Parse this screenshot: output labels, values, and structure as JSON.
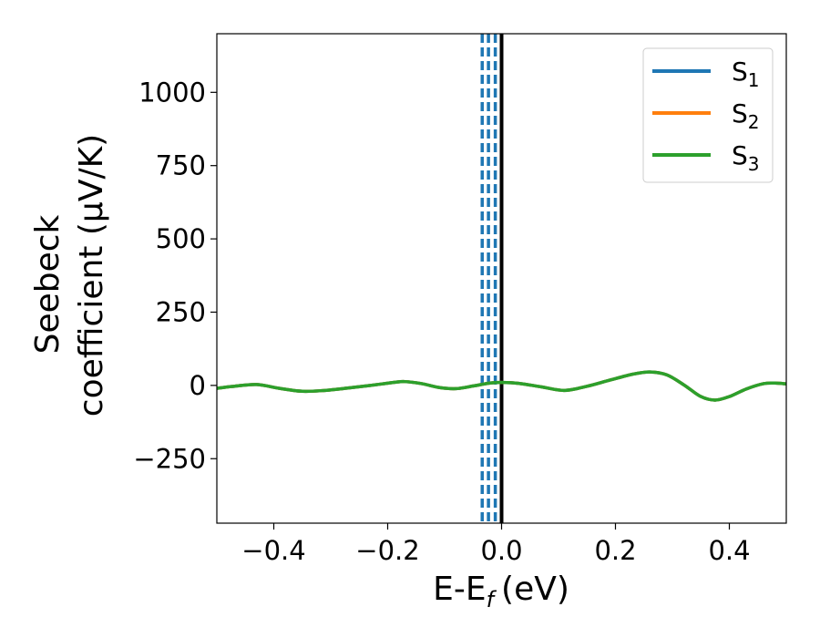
{
  "chart_data": {
    "type": "line",
    "xlabel": "E-E",
    "xlabel_subscript": "f",
    "xlabel_unit": "(eV)",
    "ylabel_line1": "Seebeck",
    "ylabel_line2": "coefficient  (μV/K)",
    "xlim": [
      -0.5,
      0.5
    ],
    "ylim": [
      -470,
      1200
    ],
    "xticks": [
      -0.4,
      -0.2,
      0.0,
      0.2,
      0.4
    ],
    "xtick_labels": [
      "−0.4",
      "−0.2",
      "0.0",
      "0.2",
      "0.4"
    ],
    "yticks": [
      -250,
      0,
      250,
      500,
      750,
      1000
    ],
    "ytick_labels": [
      "−250",
      "0",
      "250",
      "500",
      "750",
      "1000"
    ],
    "grid": false,
    "legend_position": "top-right",
    "series": [
      {
        "name": "S",
        "subscript": "1",
        "color": "#1f77b4",
        "x": [
          -0.5,
          -0.47,
          -0.43,
          -0.39,
          -0.35,
          -0.31,
          -0.27,
          -0.23,
          -0.19,
          -0.17,
          -0.14,
          -0.11,
          -0.08,
          -0.05,
          -0.02,
          0.0,
          0.03,
          0.07,
          0.11,
          0.15,
          0.19,
          0.23,
          0.26,
          0.29,
          0.32,
          0.35,
          0.375,
          0.4,
          0.43,
          0.46,
          0.48,
          0.5
        ],
        "y": [
          -10,
          -3,
          3,
          -10,
          -20,
          -17,
          -9,
          0,
          10,
          13,
          6,
          -7,
          -11,
          -2,
          8,
          10,
          7,
          -5,
          -17,
          -3,
          18,
          38,
          46,
          36,
          2,
          -38,
          -50,
          -38,
          -12,
          6,
          8,
          5
        ]
      },
      {
        "name": "S",
        "subscript": "2",
        "color": "#ff7f0e",
        "x": [
          -0.5,
          -0.47,
          -0.43,
          -0.39,
          -0.35,
          -0.31,
          -0.27,
          -0.23,
          -0.19,
          -0.17,
          -0.14,
          -0.11,
          -0.08,
          -0.05,
          -0.02,
          0.0,
          0.03,
          0.07,
          0.11,
          0.15,
          0.19,
          0.23,
          0.26,
          0.29,
          0.32,
          0.35,
          0.375,
          0.4,
          0.43,
          0.46,
          0.48,
          0.5
        ],
        "y": [
          -10,
          -3,
          3,
          -10,
          -20,
          -17,
          -9,
          0,
          10,
          13,
          6,
          -7,
          -11,
          -2,
          8,
          10,
          7,
          -5,
          -17,
          -3,
          18,
          38,
          46,
          36,
          2,
          -38,
          -50,
          -38,
          -12,
          6,
          8,
          5
        ]
      },
      {
        "name": "S",
        "subscript": "3",
        "color": "#2ca02c",
        "x": [
          -0.5,
          -0.47,
          -0.43,
          -0.39,
          -0.35,
          -0.31,
          -0.27,
          -0.23,
          -0.19,
          -0.17,
          -0.14,
          -0.11,
          -0.08,
          -0.05,
          -0.02,
          0.0,
          0.03,
          0.07,
          0.11,
          0.15,
          0.19,
          0.23,
          0.26,
          0.29,
          0.32,
          0.35,
          0.375,
          0.4,
          0.43,
          0.46,
          0.48,
          0.5
        ],
        "y": [
          -10,
          -3,
          3,
          -10,
          -20,
          -17,
          -9,
          0,
          10,
          13,
          6,
          -7,
          -11,
          -2,
          8,
          10,
          7,
          -5,
          -17,
          -3,
          18,
          38,
          46,
          36,
          2,
          -38,
          -50,
          -38,
          -12,
          6,
          8,
          5
        ]
      }
    ],
    "vertical_lines": [
      {
        "x": -0.034,
        "style": "dashed",
        "color": "#1f77b4"
      },
      {
        "x": -0.023,
        "style": "dashed",
        "color": "#1f77b4"
      },
      {
        "x": -0.011,
        "style": "dashed",
        "color": "#1f77b4"
      },
      {
        "x": 0.0,
        "style": "solid",
        "color": "#000000"
      }
    ]
  }
}
